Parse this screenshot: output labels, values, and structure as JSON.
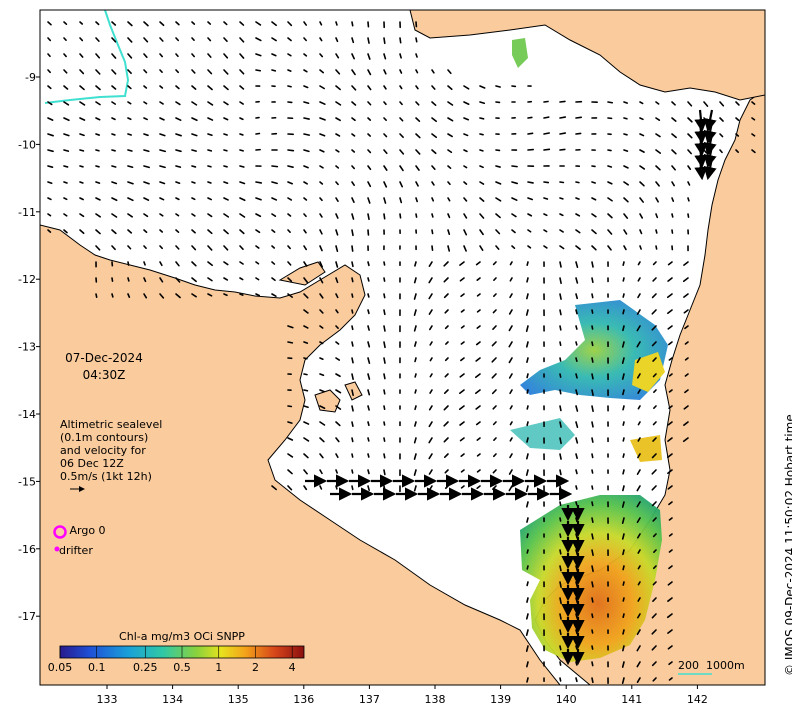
{
  "colors": {
    "land": "#FACB9C",
    "coast": "#000000",
    "contour": "#40E0D0",
    "argo_ring": "#FF00FF",
    "drifter": "#FF00FF",
    "scale_bar": "#40E0D0"
  },
  "annotation": {
    "date": "07-Dec-2024",
    "time": "04:30Z",
    "sealevel_lines": [
      "Altimetric sealevel",
      "(0.1m contours)",
      "and velocity for",
      "06 Dec 12Z",
      "0.5m/s (1kt 12h)"
    ],
    "scale_text": "200  1000m",
    "credit": "© IMOS 09-Dec-2024 11:50:02 Hobart time"
  },
  "legend": {
    "argo_label": "Argo 0",
    "drifter_label": "drifter"
  },
  "colorbar": {
    "title": "Chl-a mg/m3 OCi SNPP",
    "ticks": [
      "0.05",
      "0.1",
      "0.25",
      "0.5",
      "1",
      "2",
      "4"
    ],
    "values": [
      0.05,
      0.1,
      0.25,
      0.5,
      1,
      2,
      4
    ],
    "scale": "log",
    "range": [
      0.05,
      5
    ]
  },
  "axes": {
    "x_ticks": [
      "133",
      "134",
      "135",
      "136",
      "137",
      "138",
      "139",
      "140",
      "141",
      "142"
    ],
    "y_ticks": [
      "-9",
      "-10",
      "-11",
      "-12",
      "-13",
      "-14",
      "-15",
      "-16",
      "-17"
    ]
  }
}
